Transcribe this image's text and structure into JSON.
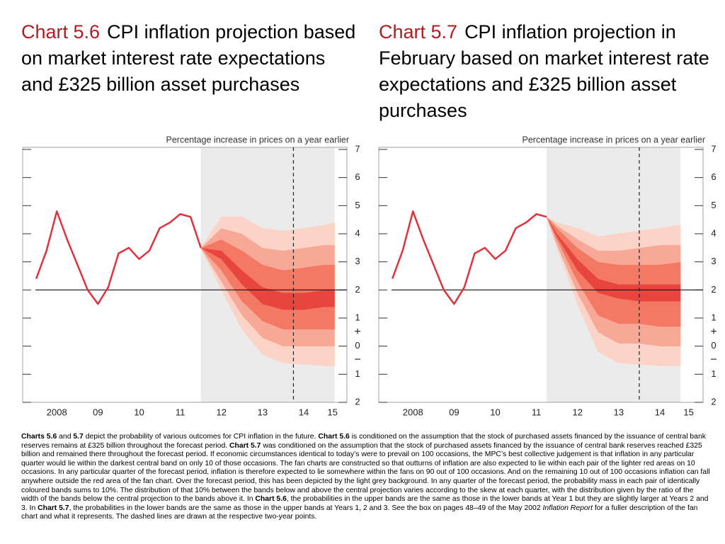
{
  "chart_data": [
    {
      "type": "fan",
      "title_label": "Chart 5.6",
      "title": "CPI inflation projection based on market interest rate expectations and £325 billion asset purchases",
      "axis_label": "Percentage increase in prices on a year earlier",
      "xlim": [
        2007.67,
        2015.55
      ],
      "xticks": [
        {
          "value": 2008.5,
          "label": "2008"
        },
        {
          "value": 2009.5,
          "label": "09"
        },
        {
          "value": 2010.5,
          "label": "10"
        },
        {
          "value": 2011.5,
          "label": "11"
        },
        {
          "value": 2012.5,
          "label": "12"
        },
        {
          "value": 2013.5,
          "label": "13"
        },
        {
          "value": 2014.5,
          "label": "14"
        },
        {
          "value": 2015.2,
          "label": "15"
        }
      ],
      "ylim": [
        -2,
        7
      ],
      "yticks": [
        {
          "value": -2,
          "label": "2"
        },
        {
          "value": -1,
          "label": "1"
        },
        0,
        1,
        2,
        3,
        4,
        5,
        6,
        7
      ],
      "sign_labels": [
        "+",
        "−"
      ],
      "history": {
        "color": "#e0323c",
        "x": [
          2008.0,
          2008.25,
          2008.5,
          2008.75,
          2009.0,
          2009.25,
          2009.5,
          2009.75,
          2010.0,
          2010.25,
          2010.5,
          2010.75,
          2011.0,
          2011.25,
          2011.5,
          2011.75,
          2012.0
        ],
        "values": [
          2.4,
          3.4,
          4.8,
          3.8,
          2.9,
          2.0,
          1.5,
          2.1,
          3.3,
          3.5,
          3.1,
          3.4,
          4.2,
          4.4,
          4.7,
          4.6,
          3.5
        ]
      },
      "projection": {
        "x": [
          2012.0,
          2012.5,
          2013.0,
          2013.5,
          2014.0,
          2014.5,
          2015.0,
          2015.25
        ],
        "bands": [
          [
            3.5,
            2.0,
            0.6,
            -0.3,
            -0.6,
            -0.65,
            -0.7,
            -0.7
          ],
          [
            3.5,
            2.3,
            1.1,
            0.3,
            0.0,
            0.0,
            0.0,
            0.0
          ],
          [
            3.5,
            2.7,
            1.6,
            0.9,
            0.6,
            0.6,
            0.6,
            0.6
          ],
          [
            3.5,
            3.1,
            2.2,
            1.5,
            1.3,
            1.3,
            1.4,
            1.4
          ],
          [
            3.5,
            3.4,
            2.7,
            2.1,
            1.9,
            1.9,
            2.0,
            2.0
          ],
          [
            3.5,
            3.8,
            3.4,
            2.9,
            2.7,
            2.8,
            2.9,
            2.9
          ],
          [
            3.5,
            4.2,
            4.0,
            3.5,
            3.4,
            3.5,
            3.6,
            3.6
          ],
          [
            3.5,
            4.6,
            4.6,
            4.2,
            4.1,
            4.2,
            4.3,
            4.4
          ]
        ],
        "colors": [
          "#fcd3c7",
          "#f8a896",
          "#f37965",
          "#e9453f"
        ]
      },
      "shade": [
        2012.0,
        2015.25
      ],
      "target": 2,
      "two_year_point": 2014.25
    },
    {
      "type": "fan",
      "title_label": "Chart 5.7",
      "title": "CPI inflation projection in February based on market interest rate expectations and £325 billion asset purchases",
      "axis_label": "Percentage increase in prices on a year earlier",
      "xlim": [
        2007.67,
        2015.55
      ],
      "xticks": [
        {
          "value": 2008.5,
          "label": "2008"
        },
        {
          "value": 2009.5,
          "label": "09"
        },
        {
          "value": 2010.5,
          "label": "10"
        },
        {
          "value": 2011.5,
          "label": "11"
        },
        {
          "value": 2012.5,
          "label": "12"
        },
        {
          "value": 2013.5,
          "label": "13"
        },
        {
          "value": 2014.5,
          "label": "14"
        },
        {
          "value": 2015.2,
          "label": "15"
        }
      ],
      "ylim": [
        -2,
        7
      ],
      "yticks": [
        {
          "value": -2,
          "label": "2"
        },
        {
          "value": -1,
          "label": "1"
        },
        0,
        1,
        2,
        3,
        4,
        5,
        6,
        7
      ],
      "sign_labels": [
        "+",
        "−"
      ],
      "history": {
        "color": "#e0323c",
        "x": [
          2008.0,
          2008.25,
          2008.5,
          2008.75,
          2009.0,
          2009.25,
          2009.5,
          2009.75,
          2010.0,
          2010.25,
          2010.5,
          2010.75,
          2011.0,
          2011.25,
          2011.5,
          2011.75
        ],
        "values": [
          2.4,
          3.4,
          4.8,
          3.8,
          2.9,
          2.0,
          1.5,
          2.1,
          3.3,
          3.5,
          3.1,
          3.4,
          4.2,
          4.4,
          4.7,
          4.6
        ]
      },
      "projection": {
        "x": [
          2011.75,
          2012.0,
          2012.5,
          2013.0,
          2013.5,
          2014.0,
          2014.5,
          2015.0
        ],
        "bands": [
          [
            4.6,
            3.5,
            1.5,
            -0.2,
            -0.6,
            -0.65,
            -0.7,
            -0.7
          ],
          [
            4.6,
            3.6,
            1.9,
            0.5,
            0.1,
            0.1,
            0.0,
            0.0
          ],
          [
            4.6,
            3.8,
            2.3,
            1.1,
            0.8,
            0.8,
            0.7,
            0.7
          ],
          [
            4.6,
            3.9,
            2.7,
            1.9,
            1.7,
            1.6,
            1.6,
            1.6
          ],
          [
            4.6,
            4.0,
            3.1,
            2.4,
            2.2,
            2.2,
            2.2,
            2.2
          ],
          [
            4.6,
            4.2,
            3.5,
            3.0,
            2.9,
            2.9,
            2.9,
            3.0
          ],
          [
            4.6,
            4.3,
            3.8,
            3.4,
            3.4,
            3.5,
            3.6,
            3.6
          ],
          [
            4.6,
            4.4,
            4.2,
            3.9,
            4.0,
            4.1,
            4.2,
            4.3
          ]
        ],
        "colors": [
          "#fcd3c7",
          "#f8a896",
          "#f37965",
          "#e9453f"
        ]
      },
      "shade": [
        2011.75,
        2015.0
      ],
      "target": 2,
      "two_year_point": 2014.0
    }
  ],
  "footnote": [
    "Charts 5.6",
    " and ",
    "5.7",
    " depict the probability of various outcomes for CPI inflation in the future.  ",
    "Chart 5.6",
    " is conditioned on the assumption that the stock of purchased assets financed by the issuance of central bank reserves remains at £325 billion throughout the forecast period.  ",
    "Chart 5.7",
    " was conditioned on the assumption that the stock of purchased assets financed by the issuance of central bank reserves reached £325 billion and remained there throughout the forecast period.  If economic circumstances identical to today’s were to prevail on 100 occasions, the MPC’s best collective judgement is that inflation in any particular quarter would lie within the darkest central band on only 10 of those occasions.  The fan charts are constructed so that outturns of inflation are also expected to lie within each pair of the lighter red areas on 10 occasions.  In any particular quarter of the forecast period, inflation is therefore expected to lie somewhere within the fans on 90 out of 100 occasions.  And on the remaining 10 out of 100 occasions inflation can fall anywhere outside the red area of the fan chart.  Over the forecast period, this has been depicted by the light grey background.  In any quarter of the forecast period, the probability mass in each pair of identically coloured bands sums to 10%.  The distribution of that 10% between the bands below and above the central projection varies according to the skew at each quarter, with the distribution given by the ratio of the width of the bands below the central projection to the bands above it.  In ",
    "Chart 5.6",
    ", the probabilities in the upper bands are the same as those in the lower bands at Year 1 but they are slightly larger at Years 2 and 3.  In ",
    "Chart 5.7",
    ", the probabilities in the lower bands are the same as those in the upper bands at Years 1, 2 and 3.  See the box on pages 48–49 of the May 2002 ",
    "Inflation Report",
    " for a fuller description of the fan chart and what it represents.  The dashed lines are drawn at the respective two-year points."
  ]
}
